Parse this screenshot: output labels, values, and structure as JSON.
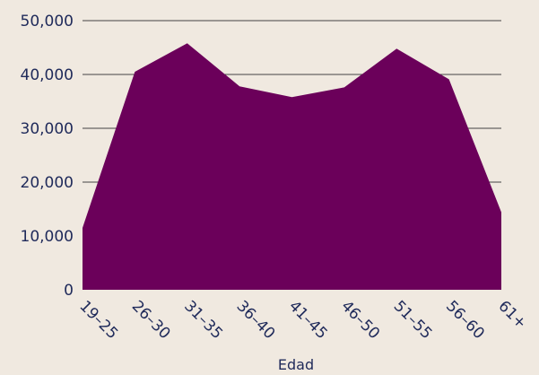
{
  "chart_data": {
    "type": "area",
    "categories": [
      "19–25",
      "26–30",
      "31–35",
      "36–40",
      "41–45",
      "46–50",
      "51–55",
      "56–60",
      "61+"
    ],
    "series": [
      {
        "values": [
          11500,
          40500,
          45800,
          37800,
          35800,
          37600,
          44800,
          39100,
          14400
        ]
      }
    ],
    "title": "",
    "xlabel": "Edad",
    "ylabel": "",
    "ylim": [
      0,
      50000
    ],
    "yticks": [
      0,
      10000,
      20000,
      30000,
      40000,
      50000
    ],
    "ytick_labels": [
      "0",
      "10,000",
      "20,000",
      "30,000",
      "40,000",
      "50,000"
    ],
    "grid": true,
    "colors": {
      "fill": "#6b005a",
      "background": "#f0e9e0",
      "grid": "#444444",
      "text": "#1f2a5a"
    }
  }
}
